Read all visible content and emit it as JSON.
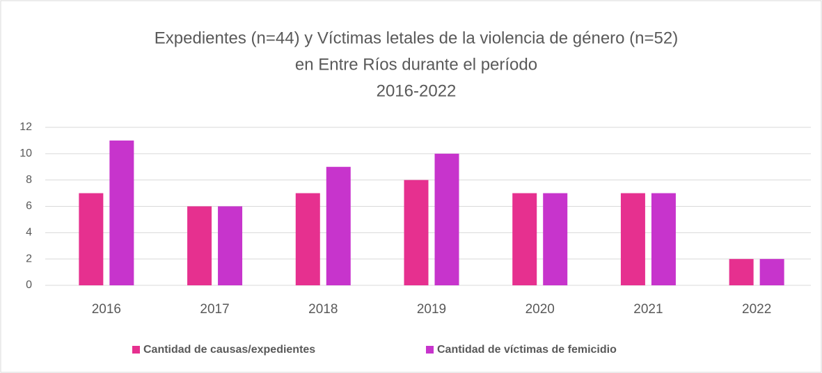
{
  "chart_data": {
    "type": "bar",
    "title": [
      "Expedientes (n=44) y Víctimas letales de la violencia de género (n=52)",
      "en Entre Ríos durante el período",
      "2016-2022"
    ],
    "categories": [
      "2016",
      "2017",
      "2018",
      "2019",
      "2020",
      "2021",
      "2022"
    ],
    "series": [
      {
        "name": "Cantidad de causas/expedientes",
        "color": "#e6308f",
        "values": [
          7,
          6,
          7,
          8,
          7,
          7,
          2
        ]
      },
      {
        "name": "Cantidad de víctimas de femicidio",
        "color": "#c734cc",
        "values": [
          11,
          6,
          9,
          10,
          7,
          7,
          2
        ]
      }
    ],
    "ylim": [
      0,
      12
    ],
    "yticks": [
      0,
      2,
      4,
      6,
      8,
      10,
      12
    ],
    "grid": true,
    "legend": "bottom"
  }
}
